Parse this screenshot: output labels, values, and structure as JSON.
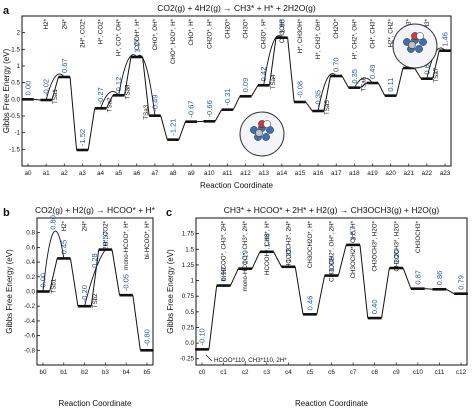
{
  "chart_data": [
    {
      "panel": "a",
      "type": "line",
      "title": "CO2(g) + 4H2(g) → CH3* + H* + 2H2O(g)",
      "xlabel": "Reaction Coordinate",
      "ylabel": "Gibbs Free Energy (eV)",
      "ylim": [
        -2.0,
        2.5
      ],
      "yticks": [
        -1.5,
        -1.0,
        -0.5,
        0.0,
        0.5,
        1.0,
        1.5,
        2.0
      ],
      "categories": [
        "a0",
        "a1",
        "a2",
        "a3",
        "a4",
        "a5",
        "a6",
        "a7",
        "a8",
        "a9",
        "a10",
        "a11",
        "a12",
        "a13",
        "a14",
        "a15",
        "a16",
        "a17",
        "a18",
        "a19",
        "a20",
        "a21",
        "a22",
        "a23"
      ],
      "label_colors": {
        "a5": "#2e9b2e",
        "a8": "#2e9b2e",
        "a9": "#2e9b2e",
        "a11": "#2e9b2e",
        "a12": "#2e9b2e",
        "a13": "#2e9b2e",
        "a14": "#2e9b2e",
        "a18": "#e08a00",
        "a21": "#2e9b2e",
        "a22": "#2e9b2e"
      },
      "values": [
        0.0,
        -0.02,
        0.67,
        -1.52,
        -0.27,
        0.12,
        1.27,
        -0.49,
        -1.21,
        -0.67,
        -0.66,
        -0.31,
        0.09,
        0.42,
        1.85,
        -0.08,
        -0.35,
        0.7,
        0.35,
        0.49,
        0.11,
        0.94,
        0.62,
        1.46
      ],
      "value_labels": [
        "0.00",
        "-0.02",
        "0.67",
        "-1.52",
        "-0.27",
        "0.12",
        "1.27",
        "-0.49",
        "-1.21",
        "-0.67",
        "-0.66",
        "-0.31",
        "0.09",
        "0.42",
        "1.85",
        "-0.08",
        "-0.35",
        "0.70",
        "0.35",
        "0.49",
        "0.11",
        "0.94",
        "0.62",
        "1.46"
      ],
      "transition_states": [
        "TSa1",
        "TSa2",
        "TSa3",
        "TSa4",
        "TSa5",
        "TSa6",
        "TSa7",
        "TSa8"
      ],
      "ts_colors": {
        "TSa8": "#e08a00"
      },
      "species": [
        "H2*",
        "2H*",
        "2H*, CO2*",
        "H*, CO2*",
        "H*, CO*, OH*",
        "COOH*, H*",
        "CHO*, OH*",
        "CHO*, H2O*, H*",
        "CHO*, H*",
        "CH2O*, H*",
        "CH2O*",
        "CH3O*",
        "CH3O*, H*",
        "CH3OH*",
        "H*, CH3OH*",
        "H*, CH3*, OH*",
        "CH2O*",
        "H*, CH2*, OH*",
        "CH*, CH3*",
        "H2*, CH2*",
        "H*, CH3*",
        "CH3*"
      ]
    },
    {
      "panel": "b",
      "type": "line",
      "title": "CO2(g) + H2(g) → HCOO* + H*",
      "xlabel": "Reaction Coordinate",
      "ylabel": "Gibbs Free Energy (eV)",
      "ylim": [
        -1.0,
        1.0
      ],
      "yticks": [
        -0.8,
        -0.6,
        -0.4,
        -0.2,
        0.0,
        0.2,
        0.4,
        0.6,
        0.8
      ],
      "categories": [
        "b0",
        "b1",
        "b2",
        "b3",
        "b4",
        "b5"
      ],
      "values": [
        0.0,
        0.45,
        -0.2,
        0.57,
        -0.05,
        -0.8
      ],
      "value_labels": [
        "0.00",
        "0.45",
        "-0.20",
        "0.57",
        "-0.05",
        "-0.80"
      ],
      "transition_states": [
        "TSb1",
        "TSb2"
      ],
      "ts_values": [
        0.8,
        0.28
      ],
      "ts_value_labels": [
        "0.80",
        "0.28"
      ],
      "species": [
        "H2*",
        "2H*",
        "2H*, CO2*",
        "mono-HCOO*, H*",
        "bi-HCOO*, H*"
      ]
    },
    {
      "panel": "c",
      "type": "line",
      "title": "CH3* + HCOO* + 2H* + H2(g) → CH3OCH3(g) + H2O(g)",
      "xlabel": "Reaction Coordinate",
      "ylabel": "Gibbs Free Energy (eV)",
      "ylim": [
        -0.35,
        2.0
      ],
      "yticks": [
        -0.25,
        0.0,
        0.25,
        0.5,
        0.75,
        1.0,
        1.25,
        1.5,
        1.75
      ],
      "categories": [
        "c0",
        "c1",
        "c2",
        "c3",
        "c4",
        "c5",
        "c6",
        "c7",
        "c8",
        "c9",
        "c10",
        "c11",
        "c12"
      ],
      "values": [
        -0.1,
        0.92,
        1.19,
        1.46,
        1.22,
        0.46,
        1.08,
        1.57,
        0.4,
        1.2,
        0.87,
        0.86,
        0.79
      ],
      "value_labels": [
        "-0.10",
        "0.92",
        "1.19",
        "1.46",
        "1.22",
        "0.46",
        "1.08",
        "1.57",
        "0.40",
        "1.20",
        "0.87",
        "0.86",
        "0.79"
      ],
      "species": [
        "bi-HCOO*, CH3*, 2H*",
        "mono-HCOO*, CH3*, 2H*",
        "HCOOH*, CH3*, H*",
        "HCOOCH3*, 2H*",
        "CH3OCH2O*, H*",
        "CH3OCH2*, OH*, 2H*",
        "CH3OCH2*, OH*, H*",
        "CH3OCH3*, H2O*",
        "CH3OCH3*, H2O*",
        "CH3OCH3*"
      ],
      "annotation": "HCOO*110, CH3*110, 2H*"
    }
  ]
}
